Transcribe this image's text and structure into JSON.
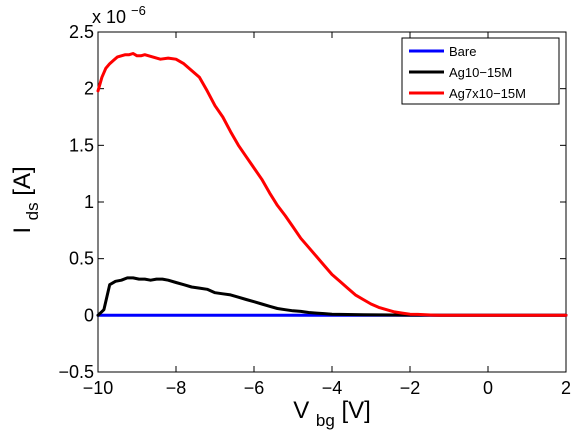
{
  "chart_data": {
    "type": "line",
    "xlabel_main": "V",
    "xlabel_sub": "bg",
    "xlabel_unit": " [V]",
    "ylabel_main": "I",
    "ylabel_sub": "ds",
    "ylabel_unit": " [A]",
    "y_exponent_base": "x 10",
    "y_exponent_power": "−6",
    "xlim": [
      -10,
      2
    ],
    "ylim": [
      -0.5,
      2.5
    ],
    "xticks": [
      -10,
      -8,
      -6,
      -4,
      -2,
      0,
      2
    ],
    "xtick_labels": [
      "−10",
      "−8",
      "−6",
      "−4",
      "−2",
      "0",
      "2"
    ],
    "yticks": [
      -0.5,
      0,
      0.5,
      1,
      1.5,
      2,
      2.5
    ],
    "ytick_labels": [
      "−0.5",
      "0",
      "0.5",
      "1",
      "1.5",
      "2",
      "2.5"
    ],
    "grid": false,
    "legend_position": "top-right",
    "series": [
      {
        "name": "Bare",
        "color": "#0000ff",
        "x": [
          -10,
          -8,
          -6,
          -4,
          -2,
          0,
          2
        ],
        "y": [
          0,
          0,
          0,
          0,
          0,
          0,
          0
        ]
      },
      {
        "name": "Ag10−15M",
        "color": "#000000",
        "x": [
          -10,
          -9.85,
          -9.7,
          -9.55,
          -9.4,
          -9.25,
          -9.1,
          -8.95,
          -8.8,
          -8.65,
          -8.5,
          -8.35,
          -8.2,
          -8.0,
          -7.8,
          -7.6,
          -7.4,
          -7.2,
          -7.0,
          -6.8,
          -6.6,
          -6.4,
          -6.2,
          -6.0,
          -5.8,
          -5.6,
          -5.4,
          -5.2,
          -5.0,
          -4.8,
          -4.6,
          -4.4,
          -4.2,
          -4.0,
          -3.6,
          -3.2,
          -2.8,
          -2.4,
          -2.0,
          -1.6,
          -1.2,
          -0.8,
          -0.4,
          0,
          0.5,
          1,
          1.5,
          2
        ],
        "y": [
          0.0,
          0.05,
          0.27,
          0.3,
          0.31,
          0.33,
          0.33,
          0.32,
          0.32,
          0.31,
          0.32,
          0.32,
          0.31,
          0.29,
          0.27,
          0.25,
          0.24,
          0.23,
          0.2,
          0.19,
          0.18,
          0.16,
          0.14,
          0.12,
          0.1,
          0.08,
          0.06,
          0.05,
          0.04,
          0.035,
          0.025,
          0.02,
          0.015,
          0.01,
          0.007,
          0.005,
          0.004,
          0.003,
          0.002,
          0.002,
          0.001,
          0.001,
          0.001,
          0.001,
          0.001,
          0.001,
          0.001,
          0.001
        ]
      },
      {
        "name": "Ag7x10−15M",
        "color": "#ff0000",
        "x": [
          -10,
          -9.9,
          -9.8,
          -9.7,
          -9.6,
          -9.5,
          -9.4,
          -9.3,
          -9.2,
          -9.1,
          -9.0,
          -8.9,
          -8.8,
          -8.7,
          -8.6,
          -8.5,
          -8.4,
          -8.2,
          -8.0,
          -7.8,
          -7.6,
          -7.4,
          -7.2,
          -7.0,
          -6.8,
          -6.6,
          -6.4,
          -6.2,
          -6.0,
          -5.8,
          -5.6,
          -5.4,
          -5.2,
          -5.0,
          -4.8,
          -4.6,
          -4.4,
          -4.2,
          -4.0,
          -3.8,
          -3.6,
          -3.4,
          -3.2,
          -3.0,
          -2.8,
          -2.6,
          -2.4,
          -2.2,
          -2.0,
          -1.8,
          -1.6,
          -1.4,
          -1.2,
          -1.0,
          -0.5,
          0,
          0.5,
          1,
          1.5,
          2
        ],
        "y": [
          1.98,
          2.1,
          2.18,
          2.22,
          2.25,
          2.28,
          2.29,
          2.3,
          2.3,
          2.31,
          2.29,
          2.29,
          2.3,
          2.29,
          2.28,
          2.27,
          2.26,
          2.27,
          2.26,
          2.22,
          2.16,
          2.1,
          1.98,
          1.85,
          1.75,
          1.62,
          1.5,
          1.4,
          1.3,
          1.2,
          1.08,
          0.97,
          0.88,
          0.78,
          0.68,
          0.6,
          0.52,
          0.44,
          0.36,
          0.3,
          0.24,
          0.18,
          0.14,
          0.1,
          0.07,
          0.05,
          0.03,
          0.02,
          0.01,
          0.008,
          0.005,
          0.002,
          0.0,
          0.0,
          0.0,
          0.0,
          0.0,
          0.0,
          0.0,
          0.0
        ]
      }
    ]
  }
}
